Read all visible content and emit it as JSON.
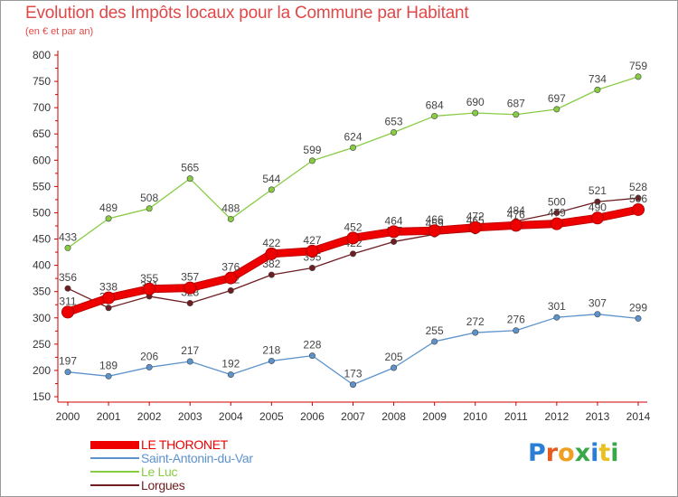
{
  "title": "Evolution des Impôts locaux pour la Commune par Habitant",
  "subtitle": "(en € et par an)",
  "logo_text": "Proxiti",
  "chart_data": {
    "type": "line",
    "title": "Evolution des Impôts locaux pour la Commune par Habitant",
    "subtitle": "(en € et par an)",
    "x": [
      "2000",
      "2001",
      "2002",
      "2003",
      "2004",
      "2005",
      "2006",
      "2007",
      "2008",
      "2009",
      "2010",
      "2011",
      "2012",
      "2013",
      "2014"
    ],
    "ylim": [
      150,
      800
    ],
    "yticks": [
      150,
      200,
      250,
      300,
      350,
      400,
      450,
      500,
      550,
      600,
      650,
      700,
      750,
      800
    ],
    "grid": false,
    "legend": "bottom-left",
    "series": [
      {
        "name": "LE THORONET",
        "color": "#ee0000",
        "values": [
          311,
          338,
          355,
          357,
          376,
          422,
          427,
          452,
          464,
          466,
          472,
          476,
          479,
          490,
          506
        ]
      },
      {
        "name": "Saint-Antonin-du-Var",
        "color": "#5d93cc",
        "values": [
          197,
          189,
          206,
          217,
          192,
          218,
          228,
          173,
          205,
          255,
          272,
          276,
          301,
          307,
          299
        ]
      },
      {
        "name": "Le Luc",
        "color": "#88cc44",
        "values": [
          433,
          489,
          508,
          565,
          488,
          544,
          599,
          624,
          653,
          684,
          690,
          687,
          697,
          734,
          759
        ]
      },
      {
        "name": "Lorgues",
        "color": "#6e1e22",
        "values": [
          356,
          319,
          341,
          328,
          352,
          382,
          395,
          422,
          445,
          459,
          465,
          484,
          500,
          521,
          528
        ]
      }
    ]
  }
}
